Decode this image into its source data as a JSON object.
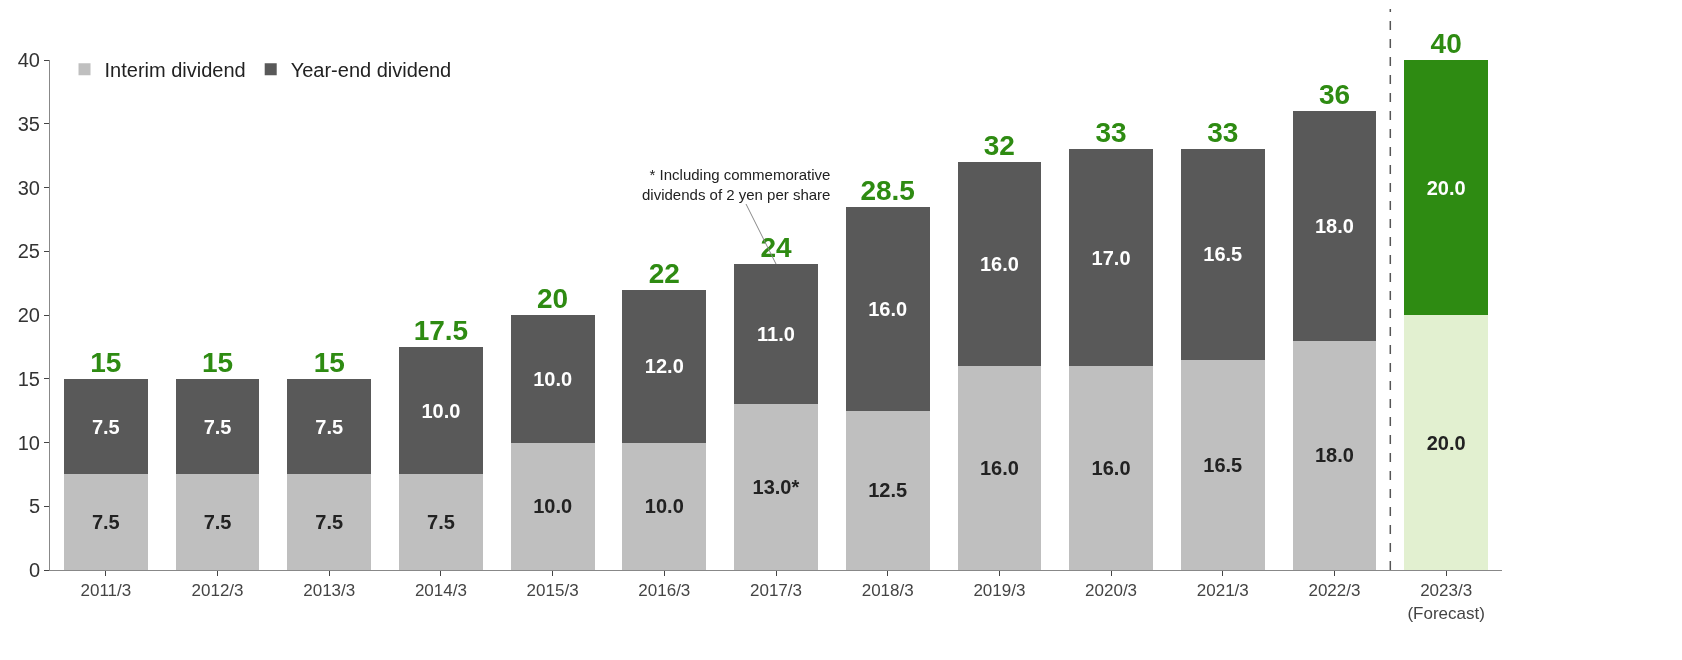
{
  "chart_data": {
    "type": "bar",
    "stacked": true,
    "categories": [
      "2011/3",
      "2012/3",
      "2013/3",
      "2014/3",
      "2015/3",
      "2016/3",
      "2017/3",
      "2018/3",
      "2019/3",
      "2020/3",
      "2021/3",
      "2022/3",
      "2023/3\n(Forecast)"
    ],
    "series": [
      {
        "name": "Interim dividend",
        "color": "#bfbfbf",
        "colors": [
          null,
          null,
          null,
          null,
          null,
          null,
          null,
          null,
          null,
          null,
          null,
          null,
          "#e2f0d0"
        ],
        "values": [
          7.5,
          7.5,
          7.5,
          7.5,
          10,
          10,
          13,
          12.5,
          16,
          16,
          16.5,
          18,
          20
        ],
        "value_labels": [
          "7.5",
          "7.5",
          "7.5",
          "7.5",
          "10.0",
          "10.0",
          "13.0*",
          "12.5",
          "16.0",
          "16.0",
          "16.5",
          "18.0",
          "20.0"
        ]
      },
      {
        "name": "Year-end dividend",
        "color": "#595959",
        "colors": [
          null,
          null,
          null,
          null,
          null,
          null,
          null,
          null,
          null,
          null,
          null,
          null,
          "#2e8b12"
        ],
        "values": [
          7.5,
          7.5,
          7.5,
          10,
          10,
          12,
          11,
          16,
          16,
          17,
          16.5,
          18,
          20
        ],
        "value_labels": [
          "7.5",
          "7.5",
          "7.5",
          "10.0",
          "10.0",
          "12.0",
          "11.0",
          "16.0",
          "16.0",
          "17.0",
          "16.5",
          "18.0",
          "20.0"
        ]
      }
    ],
    "totals": [
      "15",
      "15",
      "15",
      "17.5",
      "20",
      "22",
      "24",
      "28.5",
      "32",
      "33",
      "33",
      "36",
      "40"
    ],
    "ylim": [
      0,
      40
    ],
    "yticks": [
      0,
      5,
      10,
      15,
      20,
      25,
      30,
      35,
      40
    ],
    "legend": "top left",
    "annotations": [
      {
        "text": "* Including commemorative\ndividends of 2 yen per share",
        "x": "2017/3",
        "y": 24
      }
    ]
  }
}
